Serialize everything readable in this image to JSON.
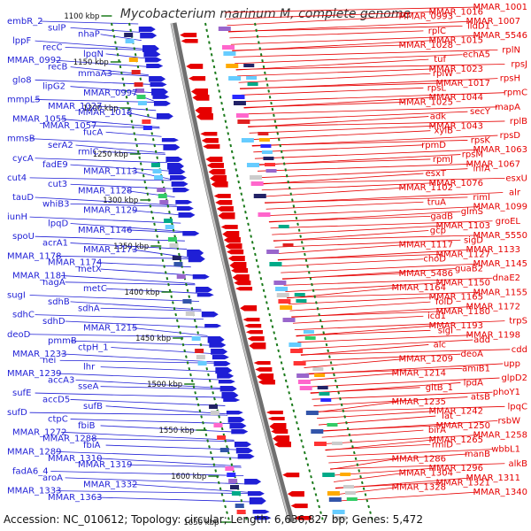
{
  "title": "Mycobacterium marinum M, complete genome",
  "footer": {
    "accession_label": "Accession:",
    "accession": "NC_010612",
    "topology_label": "Topology:",
    "topology": "circular",
    "length_label": "Length:",
    "length": "6,636,827 bp",
    "genes_label": "Genes:",
    "genes": "5,472"
  },
  "colors": {
    "forward_genes": "#1f1fd6",
    "reverse_genes": "#e60000",
    "scale_ticks": "#1a7a1a",
    "backbone": "#8a8a8a"
  },
  "scale_labels": [
    "1100 kbp",
    "1150 kbp",
    "1200 kbp",
    "1250 kbp",
    "1300 kbp",
    "1350 kbp",
    "1400 kbp",
    "1450 kbp",
    "1500 kbp",
    "1550 kbp",
    "1600 kbp",
    "1650 kbp"
  ],
  "left_labels": [
    "embR_2",
    "sulP",
    "nhaP",
    "lppF",
    "recC",
    "lpqN",
    "MMAR_0992",
    "recB",
    "mmaA3",
    "glo8",
    "lipG2",
    "MMAR_0997",
    "mmpL5",
    "MMAR_1027",
    "MMAR_1018",
    "MMAR_1055",
    "MMAR_1057",
    "fucA",
    "mmsB",
    "serA2",
    "rmlC",
    "cycA",
    "fadE9",
    "MMAR_1113",
    "cut4",
    "cut3",
    "MMAR_1128",
    "tauD",
    "whiB3",
    "MMAR_1129",
    "iunH",
    "lpqD",
    "MMAR_1146",
    "spoU",
    "acrA1",
    "MMAR_1173",
    "MMAR_1178",
    "MMAR_1174",
    "metX",
    "MMAR_1181",
    "nagA",
    "metC",
    "sugI",
    "sdhB",
    "sdhA",
    "sdhC",
    "sdhD",
    "MMAR_1215",
    "deoD",
    "pmmB",
    "ctpH_1",
    "MMAR_1233",
    "nei",
    "lhr",
    "MMAR_1239",
    "accA3",
    "sseA",
    "sufE",
    "accD5",
    "sufB",
    "sufD",
    "ctpC",
    "fbiB",
    "MMAR_1272",
    "MMAR_1288",
    "fbiA",
    "MMAR_1289",
    "MMAR_1310",
    "MMAR_1319",
    "fadA6_4",
    "aroA",
    "MMAR_1332",
    "MMAR_1333",
    "MMAR_1363"
  ],
  "right_labels": [
    "MMAR_1001",
    "MMAR_1016",
    "MMAR_0993",
    "MMAR_1007",
    "lldD1",
    "rplC",
    "MMAR_5546",
    "MMAR_1015",
    "MMAR_1028",
    "rplN",
    "echA5",
    "tuf",
    "rpsJ",
    "MMAR_1023",
    "rplW",
    "rpsH",
    "MMAR_1017",
    "rpsL",
    "rpmC",
    "MMAR_1044",
    "MMAR_1025",
    "mapA",
    "secY",
    "adk",
    "rplB",
    "MMAR_1043",
    "xylB",
    "rpsD",
    "rpsK",
    "rpmD",
    "MMAR_1063",
    "rpsM",
    "rpmJ",
    "MMAR_1067",
    "infA",
    "esxT",
    "esxU",
    "MMAR_1076",
    "MMAR_1102",
    "alr",
    "rimI",
    "truA",
    "MMAR_1099",
    "glmS",
    "gadB",
    "groEL",
    "MMAR_1103",
    "gcp",
    "MMAR_5550",
    "sigD",
    "MMAR_1117",
    "MMAR_1133",
    "MMAR_1127",
    "choD",
    "MMAR_1145",
    "guaB2",
    "MMAR_5486",
    "dnaE2",
    "MMAR_1150",
    "MMAR_1164",
    "MMAR_1155",
    "MMAR_1165",
    "folD",
    "MMAR_1172",
    "MMAR_1180",
    "icd1",
    "trpS",
    "MMAR_1193",
    "sigI",
    "MMAR_1198",
    "add",
    "alc",
    "cdd",
    "deoA",
    "MMAR_1209",
    "upp",
    "amiB1",
    "MMAR_1214",
    "glpD2",
    "lpdA",
    "gltB_1",
    "phoY1",
    "atsB",
    "MMAR_1235",
    "lpqC",
    "MMAR_1242",
    "lat",
    "rsbW",
    "MMAR_1250",
    "birA",
    "MMAR_1258",
    "MMAR_1265",
    "rmlD",
    "wbbL1",
    "manB",
    "MMAR_1286",
    "alkB",
    "MMAR_1296",
    "MMAR_1304",
    "MMAR_1311",
    "MMAR_1321",
    "MMAR_1328",
    "MMAR_1340"
  ]
}
